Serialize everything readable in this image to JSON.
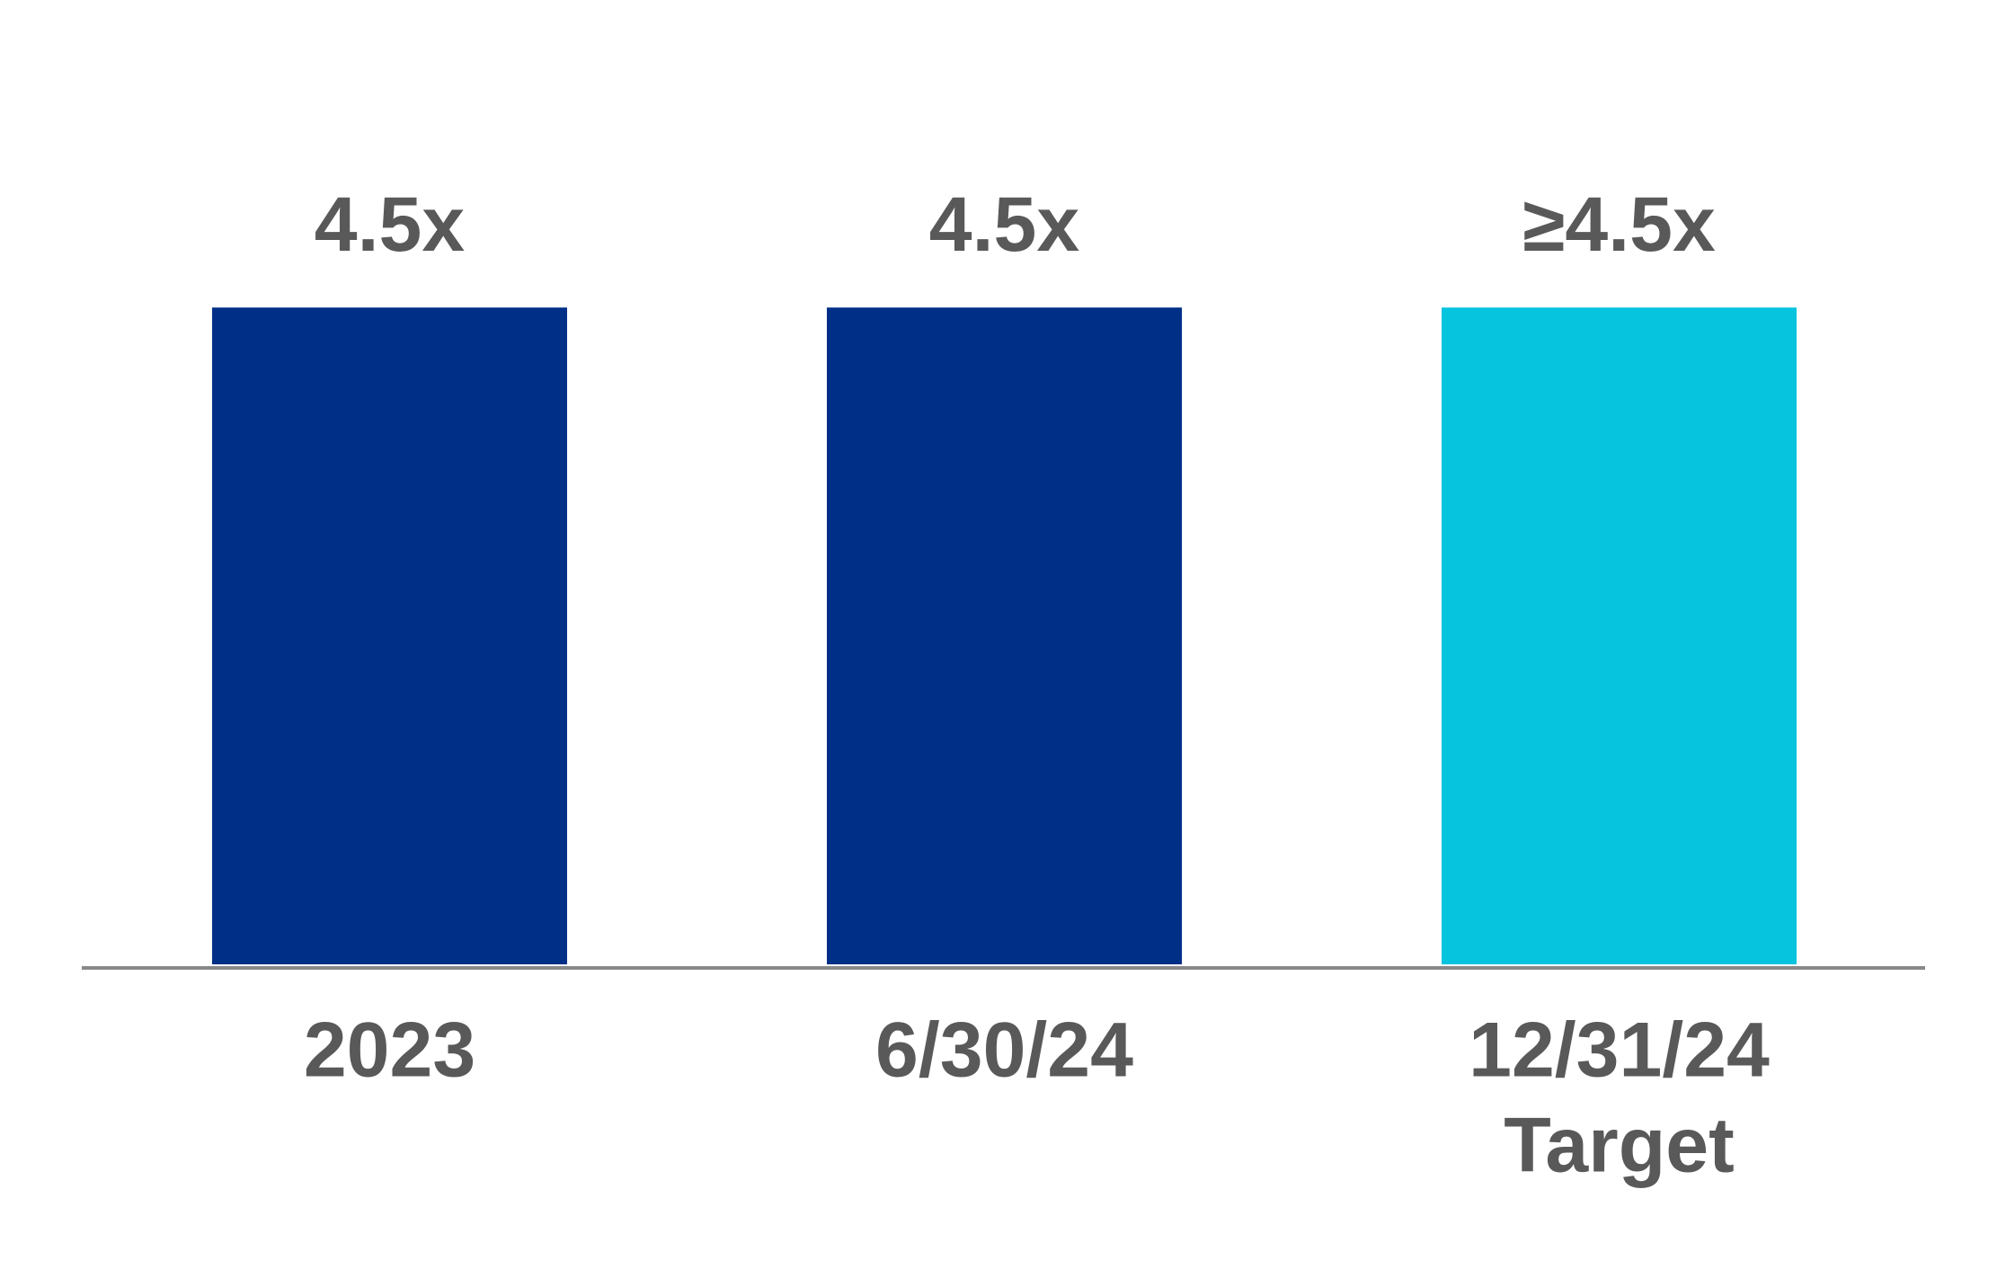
{
  "chart_data": {
    "type": "bar",
    "categories": [
      [
        "2023"
      ],
      [
        "6/30/24"
      ],
      [
        "12/31/24",
        "Target"
      ]
    ],
    "values": [
      4.5,
      4.5,
      4.5
    ],
    "value_labels": [
      "4.5x",
      "4.5x",
      "≥4.5x"
    ],
    "colors": [
      "#002f87",
      "#002f87",
      "#06c3de"
    ],
    "ylim": [
      0,
      5
    ]
  }
}
